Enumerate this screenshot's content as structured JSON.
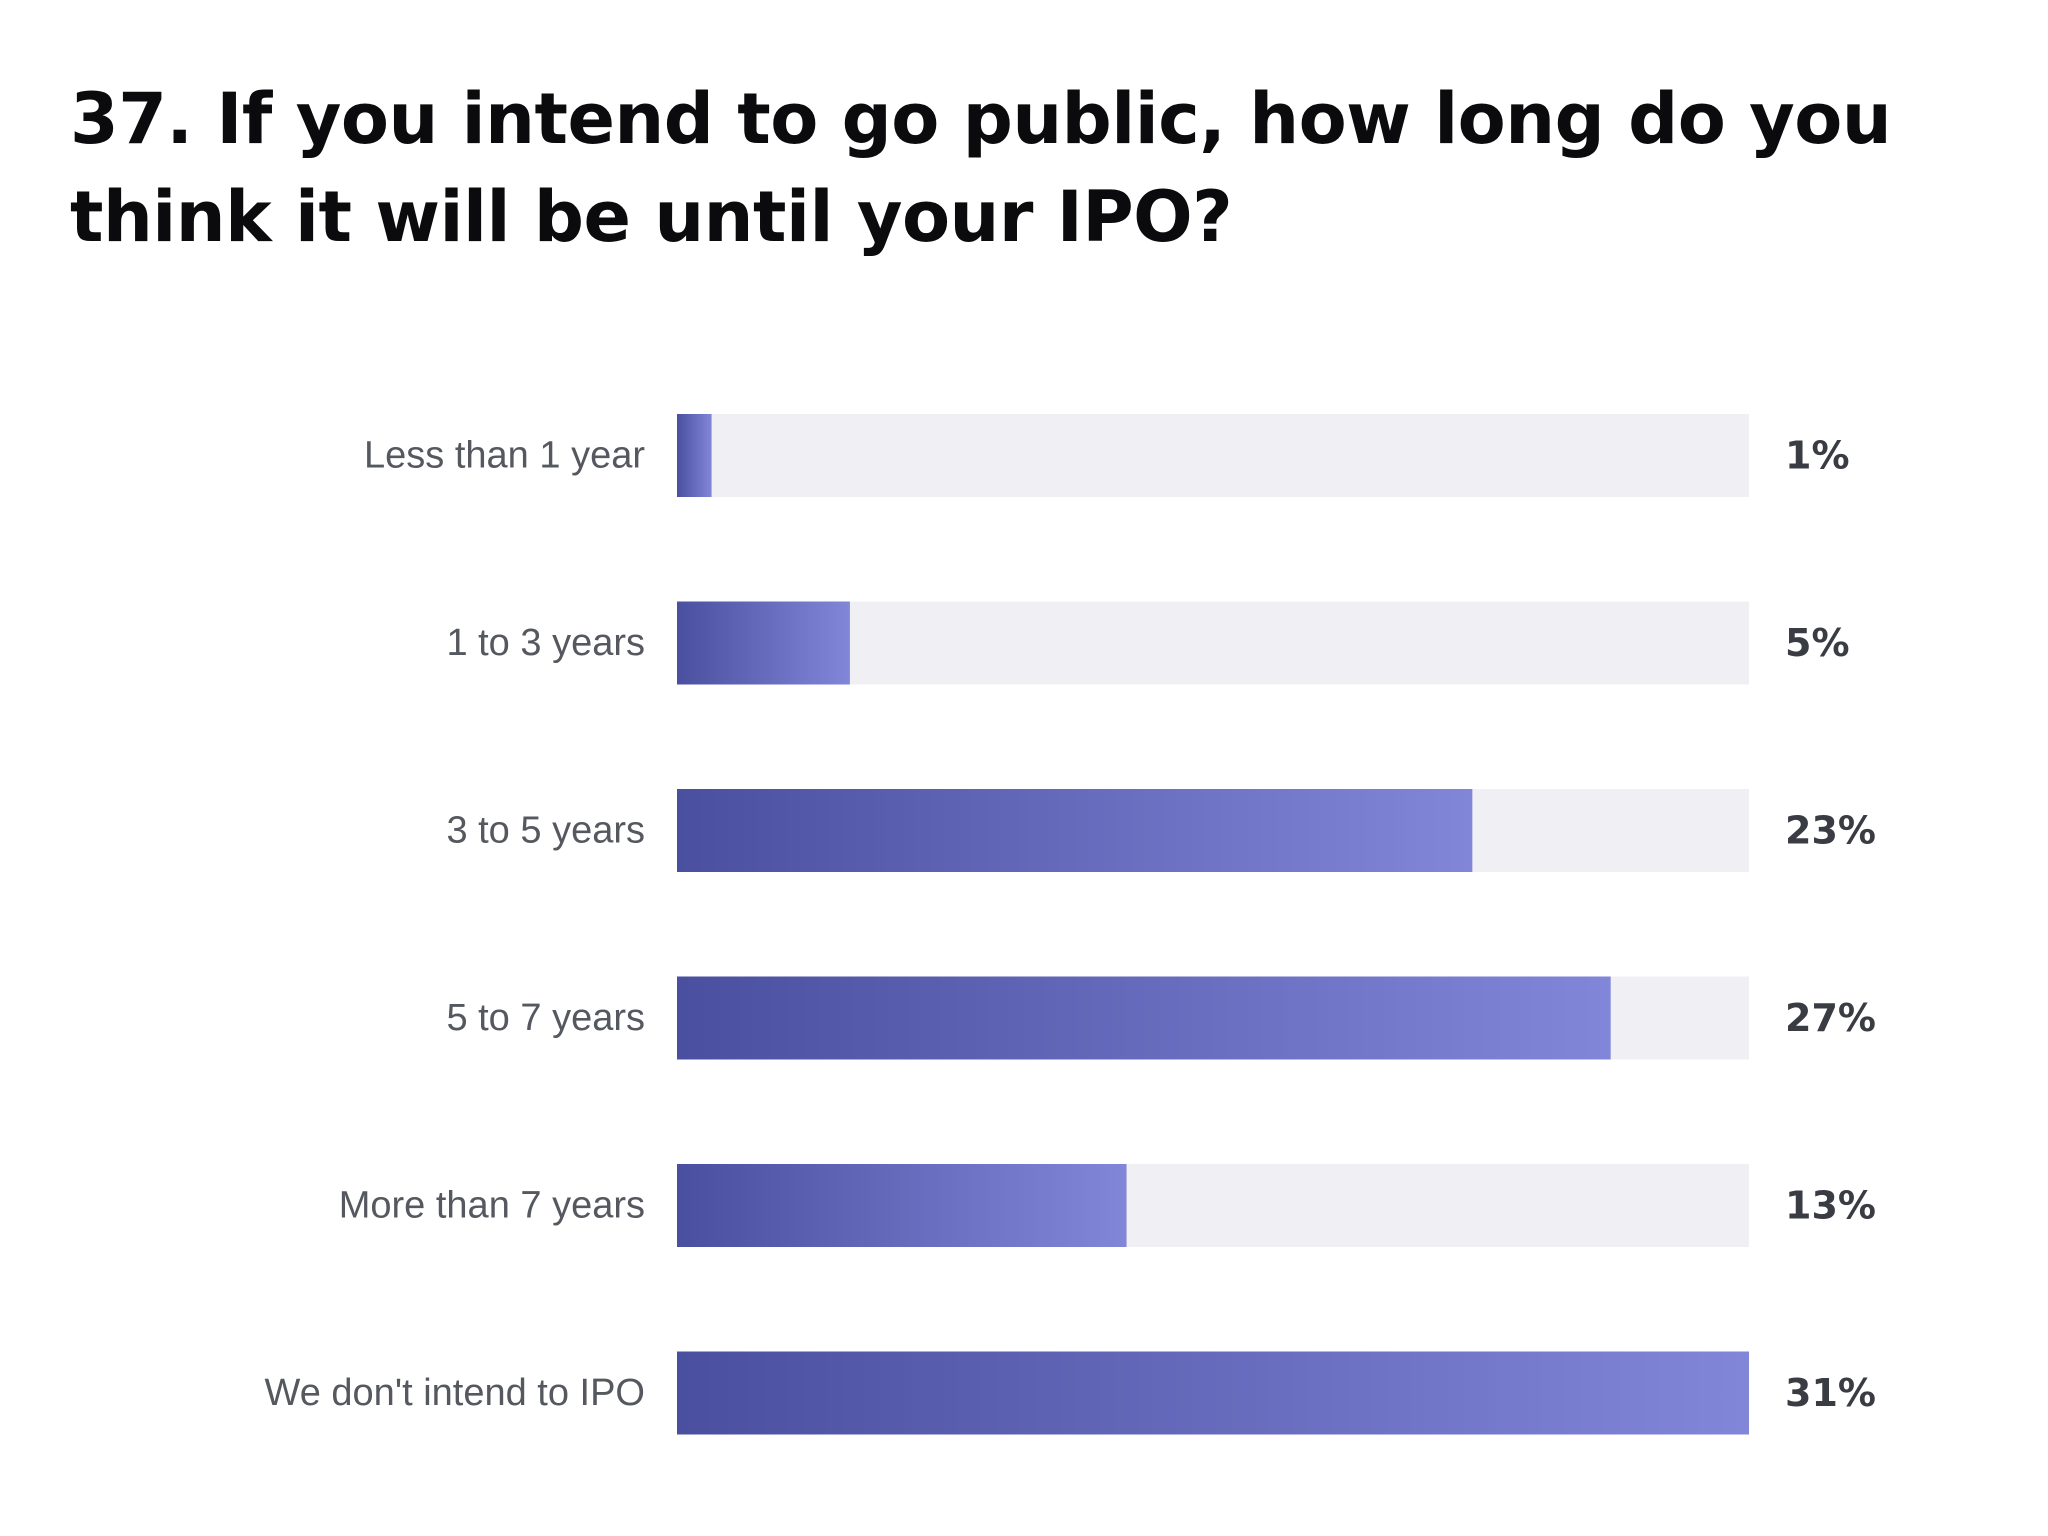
{
  "title": "37. If you intend to go public, how long do you think it will be until your IPO?",
  "colors": {
    "track": "#f0eff3",
    "bar_start": "#4a4f9f",
    "bar_end": "#8286d9",
    "title": "#0b0b0d",
    "category_text": "#55585f",
    "value_text": "#3a3c44"
  },
  "chart_data": {
    "type": "bar",
    "orientation": "horizontal",
    "categories": [
      "Less than 1 year",
      "1 to 3 years",
      "3 to 5 years",
      "5 to 7 years",
      "More than 7 years",
      "We don't intend to IPO"
    ],
    "values": [
      1,
      5,
      23,
      27,
      13,
      31
    ],
    "value_labels": [
      "1%",
      "5%",
      "23%",
      "27%",
      "13%",
      "31%"
    ],
    "unit": "%",
    "xlim": [
      0,
      31
    ],
    "grid": false,
    "legend": "none"
  }
}
